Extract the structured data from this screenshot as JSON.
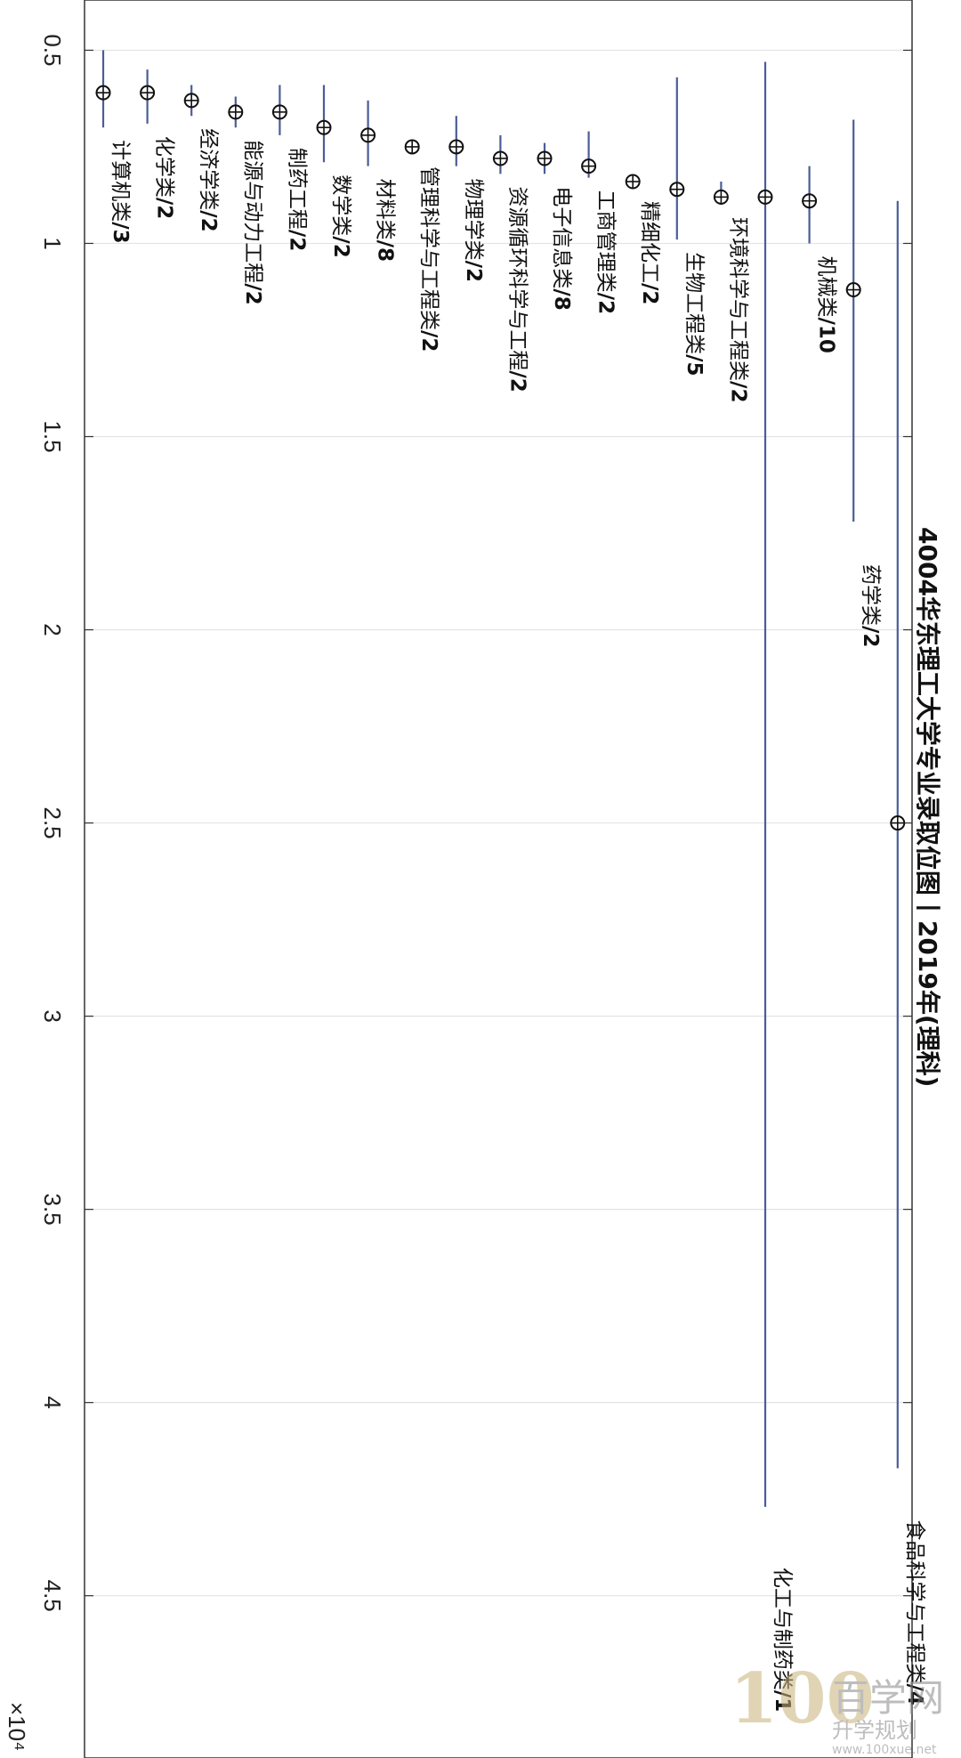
{
  "chart_data": {
    "type": "scatter",
    "title": "4004华东理工大学专业录取位图丨2019年(理科)",
    "exponent_label": "×10⁴",
    "ylim": [
      0.37,
      4.92
    ],
    "yticks": [
      0.5,
      1,
      1.5,
      2,
      2.5,
      3,
      3.5,
      4,
      4.5
    ],
    "ytick_labels": [
      "0.5",
      "1",
      "1.5",
      "2",
      "2.5",
      "3",
      "3.5",
      "4",
      "4.5"
    ],
    "grid": true,
    "categories": [
      "计算机类/3",
      "化学类/2",
      "经济学类/2",
      "能源与动力工程/2",
      "制药工程/2",
      "数学类/2",
      "材料类/8",
      "管理科学与工程类/2",
      "物理学类/2",
      "资源循环科学与工程/2",
      "电子信息类/8",
      "工商管理类/2",
      "精细化工/2",
      "生物工程类/5",
      "环境科学与工程类/2",
      "化工与制药类/1",
      "机械类/10",
      "药学类/2",
      "食品科学与工程类/4"
    ],
    "values": [
      0.61,
      0.61,
      0.63,
      0.66,
      0.66,
      0.7,
      0.72,
      0.75,
      0.75,
      0.78,
      0.78,
      0.8,
      0.84,
      0.86,
      0.88,
      0.88,
      0.89,
      1.12,
      2.5
    ],
    "ranges": [
      [
        0.5,
        0.7
      ],
      [
        0.55,
        0.69
      ],
      [
        0.59,
        0.67
      ],
      [
        0.62,
        0.7
      ],
      [
        0.59,
        0.72
      ],
      [
        0.59,
        0.79
      ],
      [
        0.63,
        0.8
      ],
      [
        0.74,
        0.76
      ],
      [
        0.67,
        0.8
      ],
      [
        0.72,
        0.82
      ],
      [
        0.74,
        0.82
      ],
      [
        0.71,
        0.83
      ],
      [
        0.83,
        0.84
      ],
      [
        0.57,
        0.99
      ],
      [
        0.84,
        0.9
      ],
      [
        0.53,
        4.27
      ],
      [
        0.8,
        1.0
      ],
      [
        0.68,
        1.72
      ],
      [
        0.89,
        4.17
      ]
    ]
  },
  "watermark": {
    "brand": "百学网",
    "channel": "升学规划",
    "url": "www.100xue.net"
  }
}
